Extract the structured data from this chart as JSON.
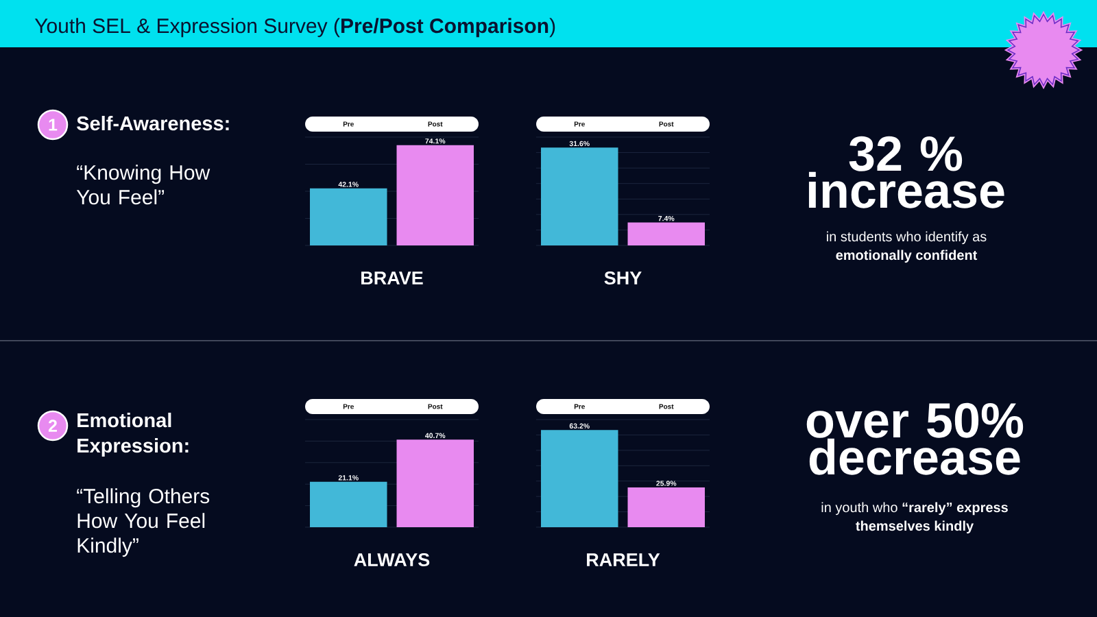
{
  "chart_data": [
    {
      "type": "other",
      "title": "Youth SEL & Expression Survey (**Pre/Post Comparison**)"
    },
    {
      "type": "other",
      "title": "Self-Awareness:",
      "subtitle": "“Knowing How You Feel”",
      "annotations": [
        "1"
      ]
    },
    {
      "type": "bar",
      "categories": [
        "Pre",
        "Post"
      ],
      "values": [
        42.1,
        74.1
      ],
      "colors": [
        "#42b8d8",
        "#e88af0"
      ],
      "value_labels": [
        "42.1%",
        "74.1%"
      ],
      "xlabel": "BRAVE",
      "ylim": [
        0,
        80
      ],
      "yticks": [
        {
          "value": 0,
          "label": null
        },
        {
          "value": 20,
          "label": null
        },
        {
          "value": 40,
          "label": null
        },
        {
          "value": 60,
          "label": null
        },
        {
          "value": 80,
          "label": null
        }
      ],
      "grid": "y",
      "tick_labels": "x"
    },
    {
      "type": "bar",
      "categories": [
        "Pre",
        "Post"
      ],
      "values": [
        31.6,
        7.4
      ],
      "colors": [
        "#42b8d8",
        "#e88af0"
      ],
      "value_labels": [
        "31.6%",
        "7.4%"
      ],
      "xlabel": "SHY",
      "ylim": [
        0,
        35
      ],
      "yticks": [
        {
          "value": 0,
          "label": null
        },
        {
          "value": 5,
          "label": null
        },
        {
          "value": 10,
          "label": null
        },
        {
          "value": 15,
          "label": null
        },
        {
          "value": 20,
          "label": null
        },
        {
          "value": 25,
          "label": null
        },
        {
          "value": 30,
          "label": null
        },
        {
          "value": 35,
          "label": null
        }
      ],
      "grid": "y",
      "tick_labels": "x"
    },
    {
      "type": "other",
      "title": "32 % increase",
      "subtitle": "in students who identify as **emotionally confident**"
    },
    {
      "type": "other",
      "title": "Emotional Expression:",
      "subtitle": "“Telling Others How You Feel Kindly”",
      "annotations": [
        "2"
      ]
    },
    {
      "type": "bar",
      "categories": [
        "Pre",
        "Post"
      ],
      "values": [
        21.1,
        40.7
      ],
      "colors": [
        "#42b8d8",
        "#e88af0"
      ],
      "value_labels": [
        "21.1%",
        "40.7%"
      ],
      "xlabel": "ALWAYS",
      "ylim": [
        0,
        50
      ],
      "yticks": [
        {
          "value": 0,
          "label": null
        },
        {
          "value": 10,
          "label": null
        },
        {
          "value": 20,
          "label": null
        },
        {
          "value": 30,
          "label": null
        },
        {
          "value": 40,
          "label": null
        },
        {
          "value": 50,
          "label": null
        }
      ],
      "grid": "y",
      "tick_labels": "x"
    },
    {
      "type": "bar",
      "categories": [
        "Pre",
        "Post"
      ],
      "values": [
        63.2,
        25.9
      ],
      "colors": [
        "#42b8d8",
        "#e88af0"
      ],
      "value_labels": [
        "63.2%",
        "25.9%"
      ],
      "xlabel": "RARELY",
      "ylim": [
        0,
        70
      ],
      "yticks": [
        {
          "value": 0,
          "label": null
        },
        {
          "value": 10,
          "label": null
        },
        {
          "value": 20,
          "label": null
        },
        {
          "value": 30,
          "label": null
        },
        {
          "value": 40,
          "label": null
        },
        {
          "value": 50,
          "label": null
        },
        {
          "value": 60,
          "label": null
        },
        {
          "value": 70,
          "label": null
        }
      ],
      "grid": "y",
      "tick_labels": "x"
    },
    {
      "type": "other",
      "title": "over 50% decrease",
      "subtitle": "in youth who **“rarely” express themselves kindly**"
    }
  ]
}
